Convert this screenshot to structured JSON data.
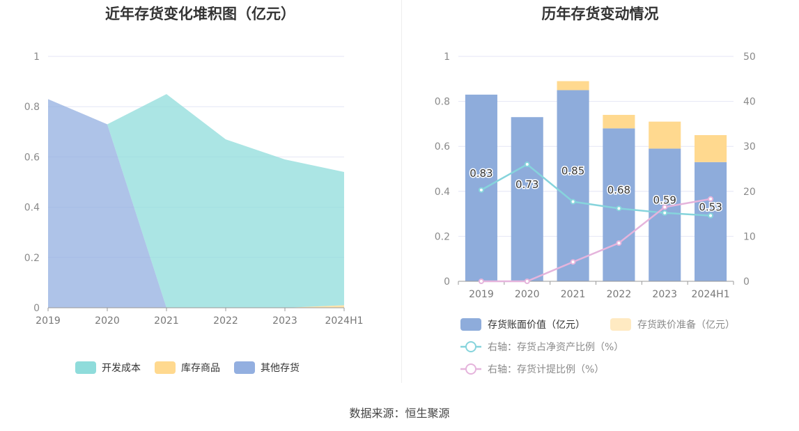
{
  "source_text": "数据来源：恒生聚源",
  "colors": {
    "teal": "#8fdcdb",
    "orange": "#ffd98f",
    "blue": "#93afe0",
    "bar_blue": "#8eacdb",
    "bar_orange": "#ffd98f",
    "line_teal": "#86d4dc",
    "line_pink": "#e5b4dc"
  },
  "chart_data": [
    {
      "type": "area",
      "title": "近年存货变化堆积图（亿元）",
      "x": [
        "2019",
        "2020",
        "2021",
        "2022",
        "2023",
        "2024H1"
      ],
      "ylim": [
        0,
        1
      ],
      "yticks": [
        0,
        0.2,
        0.4,
        0.6,
        0.8,
        1
      ],
      "stacked": true,
      "series": [
        {
          "name": "其他存货",
          "color": "#93afe0",
          "values": [
            0.83,
            0.73,
            0,
            0,
            0,
            0
          ]
        },
        {
          "name": "库存商品",
          "color": "#ffd98f",
          "values": [
            0,
            0,
            0,
            0,
            0,
            0.01
          ]
        },
        {
          "name": "开发成本",
          "color": "#8fdcdb",
          "values": [
            0,
            0,
            0.85,
            0.67,
            0.59,
            0.53
          ]
        }
      ],
      "legend": [
        {
          "name": "开发成本",
          "color": "#8fdcdb"
        },
        {
          "name": "库存商品",
          "color": "#ffd98f"
        },
        {
          "name": "其他存货",
          "color": "#93afe0"
        }
      ],
      "legend_position": "bottom",
      "grid": true
    },
    {
      "type": "bar",
      "title": "历年存货变动情况",
      "categories": [
        "2019",
        "2020",
        "2021",
        "2022",
        "2023",
        "2024H1"
      ],
      "ylim": [
        0,
        1
      ],
      "yticks": [
        0,
        0.2,
        0.4,
        0.6,
        0.8,
        1
      ],
      "y2lim": [
        0,
        50
      ],
      "y2ticks": [
        0,
        10,
        20,
        30,
        40,
        50
      ],
      "stacked": true,
      "series": [
        {
          "name": "存货账面价值（亿元）",
          "type": "bar",
          "color": "#8eacdb",
          "values": [
            0.83,
            0.73,
            0.85,
            0.68,
            0.59,
            0.53
          ],
          "labels": [
            "0.83",
            "0.73",
            "0.85",
            "0.68",
            "0.59",
            "0.53"
          ]
        },
        {
          "name": "存货跌价准备（亿元）",
          "type": "bar",
          "color": "#ffd98f",
          "values": [
            0,
            0,
            0.04,
            0.06,
            0.12,
            0.12
          ]
        },
        {
          "name": "右轴：存货占净资产比例（%）",
          "type": "line",
          "axis": "right",
          "color": "#86d4dc",
          "values": [
            20.3,
            26,
            17.7,
            16.2,
            15.2,
            14.6
          ]
        },
        {
          "name": "右轴：存货计提比例（%）",
          "type": "line",
          "axis": "right",
          "color": "#e5b4dc",
          "values": [
            0,
            0,
            4.3,
            8.5,
            16.5,
            18.3
          ]
        }
      ],
      "legend_position": "bottom",
      "grid": true
    }
  ]
}
